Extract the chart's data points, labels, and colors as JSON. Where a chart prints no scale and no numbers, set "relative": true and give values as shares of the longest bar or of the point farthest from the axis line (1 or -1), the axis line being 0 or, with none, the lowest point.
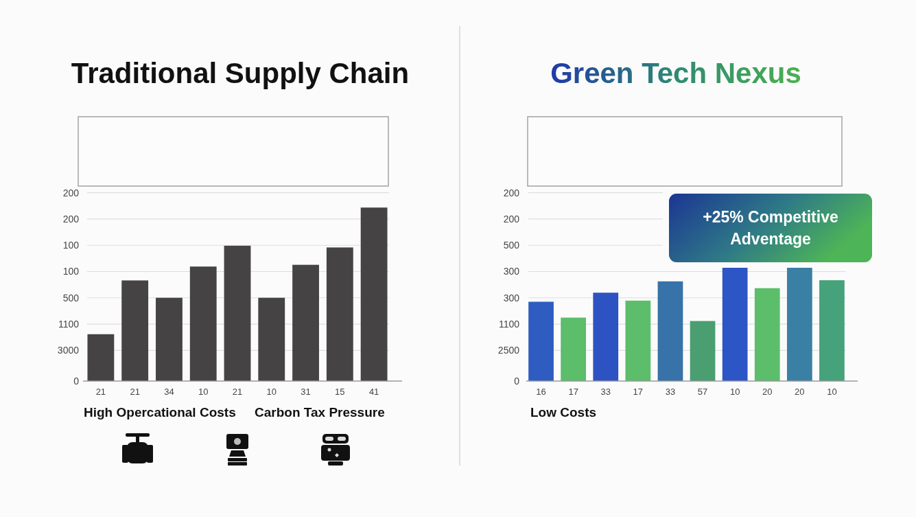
{
  "chart_data": [
    {
      "type": "bar",
      "title": "Traditional Supply Chain",
      "categories": [
        "21",
        "21",
        "34",
        "10",
        "21",
        "10",
        "31",
        "15",
        "41"
      ],
      "values": [
        0.27,
        0.58,
        0.48,
        0.66,
        0.78,
        0.48,
        0.67,
        0.77,
        1
      ],
      "color": "#454343",
      "relative": true,
      "grid": "y",
      "annotations": [
        "200",
        "200",
        "100",
        "100",
        "500",
        "1100",
        "3000",
        "0",
        "High Opercational Costs",
        "Carbon Tax Pressure"
      ]
    },
    {
      "type": "bar",
      "title": "Green Tech Nexus",
      "categories": [
        "16",
        "17",
        "33",
        "17",
        "33",
        "57",
        "10",
        "20",
        "20",
        "10"
      ],
      "values": [
        0.7,
        0.56,
        0.78,
        0.71,
        0.88,
        0.53,
        1,
        0.82,
        1,
        0.89
      ],
      "colors": [
        "#2f5cc0",
        "#5cbd6b",
        "#2d52c2",
        "#5cbd6b",
        "#3772a8",
        "#4b9e70",
        "#2c55c6",
        "#5cbd6b",
        "#3a7fa4",
        "#45a27a"
      ],
      "relative": true,
      "grid": "y",
      "annotations": [
        "200",
        "200",
        "500",
        "300",
        "300",
        "1100",
        "2500",
        "0",
        "+25% Competitive Adventage",
        "Low Costs"
      ]
    }
  ]
}
